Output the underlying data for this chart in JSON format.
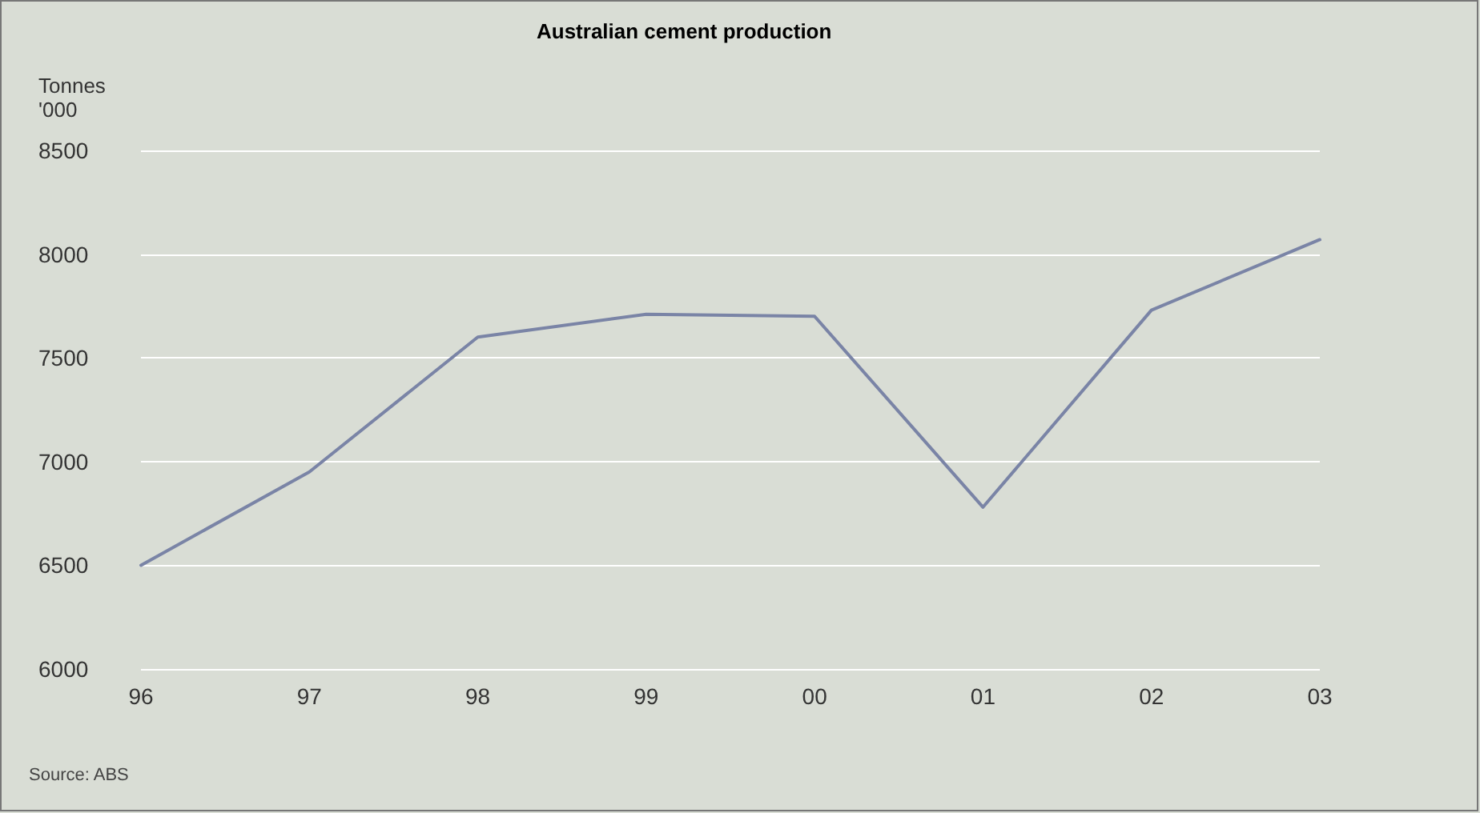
{
  "chart_data": {
    "type": "line",
    "title": "Australian cement production",
    "ylabel": "Tonnes\n'000",
    "annotations": [
      "Source: ABS"
    ],
    "categories": [
      "96",
      "97",
      "98",
      "99",
      "00",
      "01",
      "02",
      "03"
    ],
    "series": [
      {
        "color": "#7a84a6",
        "values": [
          6500,
          6950,
          7600,
          7710,
          7700,
          6780,
          7730,
          8070
        ]
      }
    ],
    "ylim": [
      6000,
      8500
    ],
    "yticks": [
      6000,
      6500,
      7000,
      7500,
      8000,
      8500
    ],
    "grid": "y",
    "marker": "none",
    "line_style": "solid"
  }
}
